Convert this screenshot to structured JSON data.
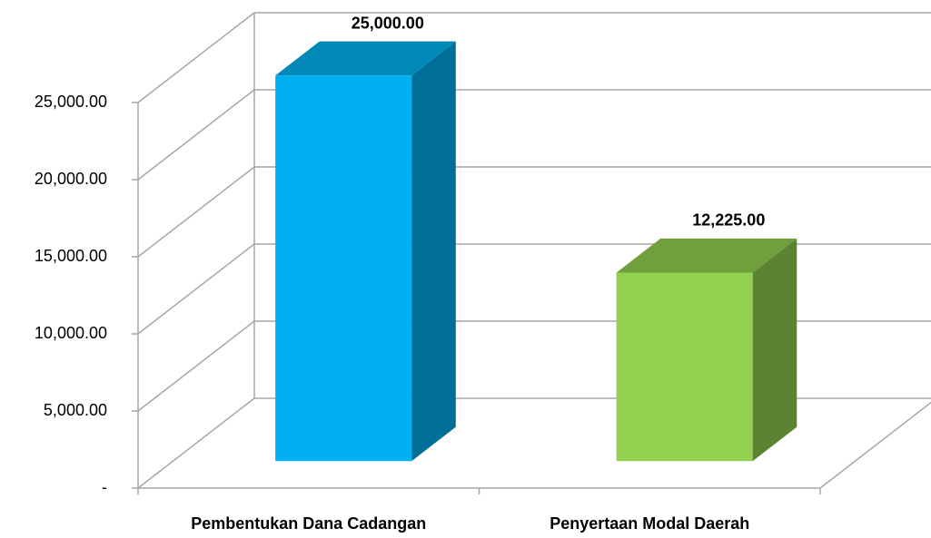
{
  "chart_data": {
    "type": "bar3d",
    "categories": [
      "Pembentukan Dana Cadangan",
      "Penyertaan Modal Daerah"
    ],
    "values": [
      25000,
      12225
    ],
    "value_labels": [
      "25,000.00",
      "12,225.00"
    ],
    "colors": [
      "#00b0f0",
      "#92d050"
    ],
    "ylim": [
      0,
      25000
    ],
    "yticks": [
      {
        "value": 0,
        "label": "-"
      },
      {
        "value": 5000,
        "label": "5,000.00"
      },
      {
        "value": 10000,
        "label": "10,000.00"
      },
      {
        "value": 15000,
        "label": "15,000.00"
      },
      {
        "value": 20000,
        "label": "20,000.00"
      },
      {
        "value": 25000,
        "label": "25,000.00"
      }
    ],
    "grid": true
  }
}
